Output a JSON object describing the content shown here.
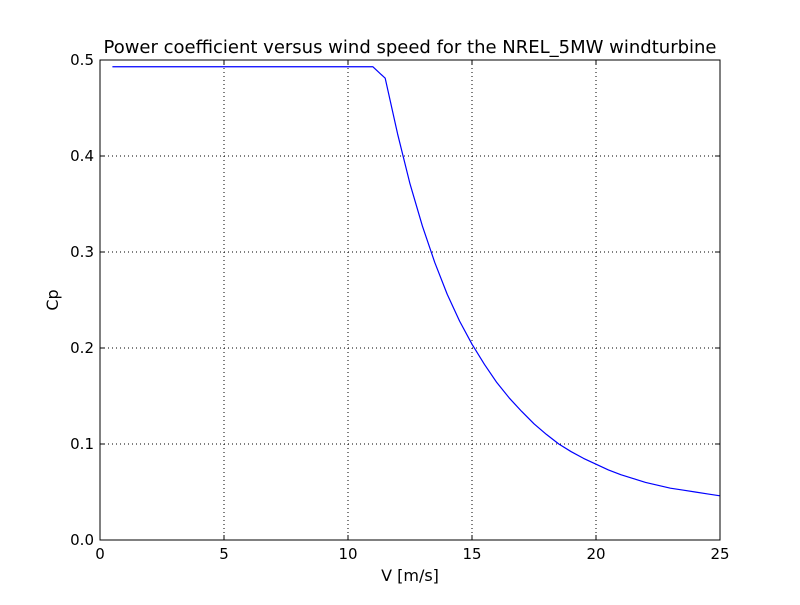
{
  "chart_data": {
    "type": "line",
    "title": "Power coefficient versus wind speed for the NREL_5MW windturbine",
    "xlabel": "V [m/s]",
    "ylabel": "Cp",
    "xlim": [
      0,
      25
    ],
    "ylim": [
      0,
      0.5
    ],
    "xticks": [
      0,
      5,
      10,
      15,
      20,
      25
    ],
    "yticks": [
      0.0,
      0.1,
      0.2,
      0.3,
      0.4,
      0.5
    ],
    "xtick_labels": [
      "0",
      "5",
      "10",
      "15",
      "20",
      "25"
    ],
    "ytick_labels": [
      "0.0",
      "0.1",
      "0.2",
      "0.3",
      "0.4",
      "0.5"
    ],
    "grid": true,
    "legend": "none",
    "series": [
      {
        "color": "#0000ff",
        "x": [
          0.5,
          1,
          2,
          3,
          4,
          5,
          6,
          7,
          8,
          9,
          10,
          11,
          11.5,
          12,
          12.5,
          13,
          13.5,
          14,
          14.5,
          15,
          15.5,
          16,
          16.5,
          17,
          17.5,
          18,
          18.5,
          19,
          19.5,
          20,
          20.5,
          21,
          21.5,
          22,
          22.5,
          23,
          23.5,
          24,
          24.5,
          25
        ],
        "y": [
          0.493,
          0.493,
          0.493,
          0.493,
          0.493,
          0.493,
          0.493,
          0.493,
          0.493,
          0.493,
          0.493,
          0.493,
          0.481,
          0.423,
          0.371,
          0.327,
          0.289,
          0.256,
          0.228,
          0.204,
          0.183,
          0.164,
          0.148,
          0.134,
          0.121,
          0.11,
          0.1,
          0.092,
          0.085,
          0.079,
          0.073,
          0.068,
          0.064,
          0.06,
          0.057,
          0.054,
          0.052,
          0.05,
          0.048,
          0.046
        ]
      }
    ]
  }
}
